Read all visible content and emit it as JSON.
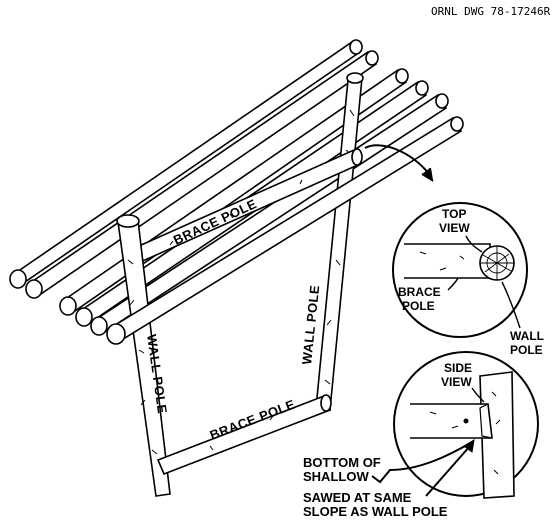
{
  "drawing_number": "ORNL DWG 78-17246R",
  "labels": {
    "brace_pole_top": "BRACE POLE",
    "wall_pole_left": "WALL POLE",
    "wall_pole_right": "WALL POLE",
    "brace_pole_bottom": "BRACE POLE",
    "top_view_1": "TOP",
    "top_view_2": "VIEW",
    "brace_pole_detail_1": "BRACE",
    "brace_pole_detail_2": "POLE",
    "wall_pole_detail_1": "WALL",
    "wall_pole_detail_2": "POLE",
    "side_view_1": "SIDE",
    "side_view_2": "VIEW",
    "bottom_of_shallow_1": "BOTTOM OF",
    "bottom_of_shallow_2": "SHALLOW",
    "sawed_1": "SAWED AT SAME",
    "sawed_2": "SLOPE AS WALL POLE"
  }
}
